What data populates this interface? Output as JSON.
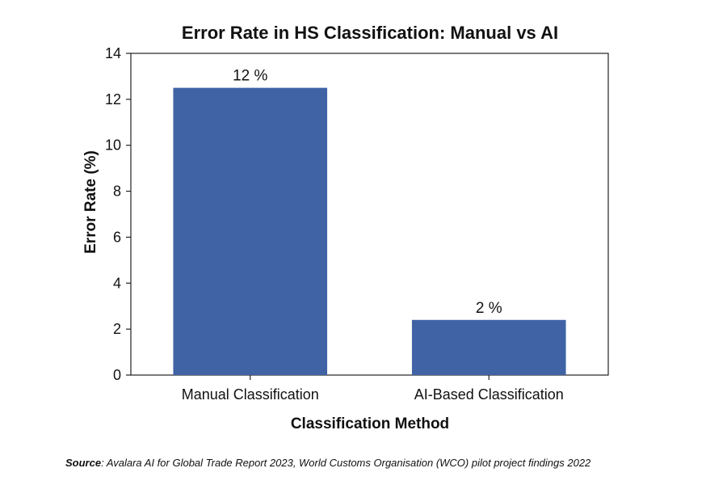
{
  "chart_data": {
    "type": "bar",
    "title": "Error Rate in HS Classification: Manual vs AI",
    "xlabel": "Classification Method",
    "ylabel": "Error Rate (%)",
    "categories": [
      "Manual Classification",
      "AI-Based Classification"
    ],
    "values": [
      12.5,
      2.4
    ],
    "data_labels": [
      "12 %",
      "2 %"
    ],
    "ylim": [
      0,
      14
    ],
    "yticks": [
      0,
      2,
      4,
      6,
      8,
      10,
      12,
      14
    ],
    "grid": false,
    "legend": "none",
    "bar_color": "#4063a5"
  },
  "source": {
    "label": "Source",
    "text": ": Avalara AI for Global Trade Report 2023, World Customs Organisation (WCO) pilot project findings 2022"
  }
}
